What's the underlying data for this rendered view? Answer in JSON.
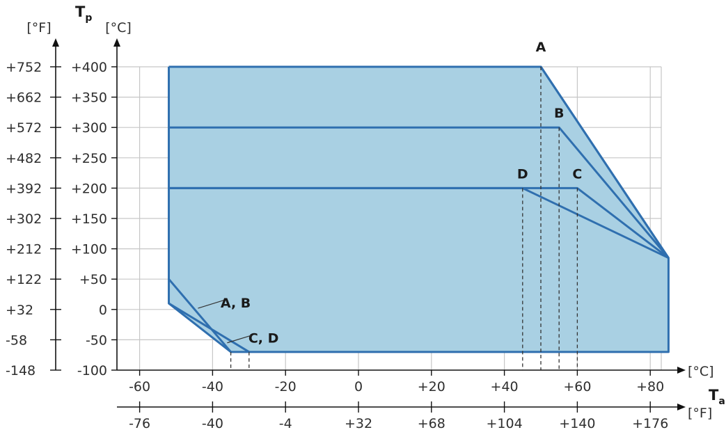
{
  "chart_data": {
    "type": "area",
    "x_axis": {
      "title_main": "T",
      "title_sub": "a",
      "unit_c": "[°C]",
      "unit_f": "[°F]",
      "ticks_c": [
        {
          "v": -60,
          "label": "-60"
        },
        {
          "v": -40,
          "label": "-40"
        },
        {
          "v": -20,
          "label": "-20"
        },
        {
          "v": 0,
          "label": "0"
        },
        {
          "v": 20,
          "label": "+20"
        },
        {
          "v": 40,
          "label": "+40"
        },
        {
          "v": 60,
          "label": "+60"
        },
        {
          "v": 80,
          "label": "+80"
        }
      ],
      "ticks_f": [
        {
          "v": -76,
          "label": "-76"
        },
        {
          "v": -40,
          "label": "-40"
        },
        {
          "v": -4,
          "label": "-4"
        },
        {
          "v": 32,
          "label": "+32"
        },
        {
          "v": 68,
          "label": "+68"
        },
        {
          "v": 104,
          "label": "+104"
        },
        {
          "v": 140,
          "label": "+140"
        },
        {
          "v": 176,
          "label": "+176"
        }
      ]
    },
    "y_axis": {
      "title_main": "T",
      "title_sub": "p",
      "unit_c": "[°C]",
      "unit_f": "[°F]",
      "ticks_c": [
        {
          "v": -100,
          "label": "-100"
        },
        {
          "v": -50,
          "label": "-50"
        },
        {
          "v": 0,
          "label": "0"
        },
        {
          "v": 50,
          "label": "+50"
        },
        {
          "v": 100,
          "label": "+100"
        },
        {
          "v": 150,
          "label": "+150"
        },
        {
          "v": 200,
          "label": "+200"
        },
        {
          "v": 250,
          "label": "+250"
        },
        {
          "v": 300,
          "label": "+300"
        },
        {
          "v": 350,
          "label": "+350"
        },
        {
          "v": 400,
          "label": "+400"
        }
      ],
      "ticks_f": [
        {
          "v": -100,
          "label": "-148"
        },
        {
          "v": -50,
          "label": "-58"
        },
        {
          "v": 0,
          "label": "+32"
        },
        {
          "v": 50,
          "label": "+122"
        },
        {
          "v": 100,
          "label": "+212"
        },
        {
          "v": 150,
          "label": "+302"
        },
        {
          "v": 200,
          "label": "+392"
        },
        {
          "v": 250,
          "label": "+482"
        },
        {
          "v": 300,
          "label": "+572"
        },
        {
          "v": 350,
          "label": "+662"
        },
        {
          "v": 400,
          "label": "+752"
        }
      ]
    },
    "xlim": [
      -65,
      85
    ],
    "ylim": [
      -100,
      400
    ],
    "grid": true,
    "fill_color": "#a9d0e3",
    "line_color": "#2f6faf",
    "region_outline": [
      [
        -52,
        400
      ],
      [
        50,
        400
      ],
      [
        85,
        85
      ],
      [
        85,
        -70
      ],
      [
        -35,
        -70
      ],
      [
        -52,
        10
      ],
      [
        -52,
        400
      ]
    ],
    "series": [
      {
        "name": "A",
        "points": [
          [
            -52,
            400
          ],
          [
            50,
            400
          ],
          [
            85,
            85
          ]
        ]
      },
      {
        "name": "B",
        "points": [
          [
            -52,
            300
          ],
          [
            55,
            300
          ],
          [
            85,
            85
          ]
        ]
      },
      {
        "name": "C",
        "points": [
          [
            -52,
            200
          ],
          [
            60,
            200
          ],
          [
            85,
            85
          ]
        ]
      },
      {
        "name": "D",
        "points": [
          [
            -52,
            200
          ],
          [
            45,
            200
          ],
          [
            85,
            85
          ]
        ]
      },
      {
        "name": "A, B",
        "points": [
          [
            -52,
            50
          ],
          [
            -35,
            -70
          ]
        ]
      },
      {
        "name": "C, D",
        "points": [
          [
            -52,
            10
          ],
          [
            -30,
            -70
          ]
        ]
      }
    ],
    "dashed_markers": [
      {
        "x": 50,
        "y": 400
      },
      {
        "x": 55,
        "y": 300
      },
      {
        "x": 60,
        "y": 200
      },
      {
        "x": 45,
        "y": 200
      },
      {
        "x": -35,
        "y": -70
      },
      {
        "x": -30,
        "y": -70
      }
    ],
    "labels": [
      {
        "text": "A",
        "x": 50,
        "y": 400
      },
      {
        "text": "B",
        "x": 55,
        "y": 300
      },
      {
        "text": "C",
        "x": 60,
        "y": 200
      },
      {
        "text": "D",
        "x": 45,
        "y": 200
      },
      {
        "text": "A, B",
        "x": -42,
        "y": 10
      },
      {
        "text": "C, D",
        "x": -34,
        "y": -50
      }
    ]
  }
}
